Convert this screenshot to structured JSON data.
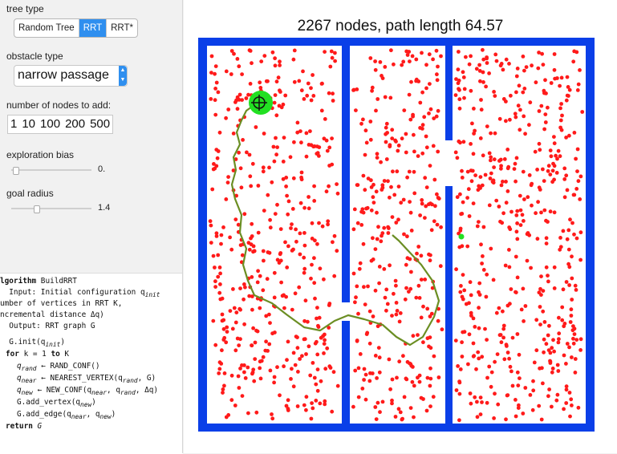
{
  "controls": {
    "tree_type_label": "tree type",
    "tree_types": [
      "Random Tree",
      "RRT",
      "RRT*"
    ],
    "tree_type_selected": "RRT",
    "obstacle_label": "obstacle type",
    "obstacle_value": "narrow passage",
    "nodes_label": "number of nodes to add:",
    "node_buttons": [
      "1",
      "10",
      "100",
      "200",
      "500"
    ],
    "bias_label": "exploration bias",
    "bias_value": "0.",
    "bias_level": 0.02,
    "goal_label": "goal radius",
    "goal_value": "1.4",
    "goal_level": 0.3
  },
  "algorithm": {
    "l1a": "lgorithm",
    "l1b": " BuildRRT",
    "l2": "  Input: Initial configuration q",
    "l2sub": "init",
    "l3": "umber of vertices in RRT K,",
    "l4": "ncremental distance Δq)",
    "l5": "  Output: RRT graph G",
    "l6a": "  G.init(q",
    "l6sub": "init",
    "l7a": "for",
    "l7b": " k = 1 ",
    "l7c": "to",
    "l7d": " K",
    "l8a": "q",
    "l8sub": "rand",
    "l8b": " ← RAND_CONF()",
    "l9a": "q",
    "l9sub": "near",
    "l9b": " ← NEAREST_VERTEX(q",
    "l9sub2": "rand",
    "l9c": ", G)",
    "l10a": "q",
    "l10sub": "new",
    "l10b": " ← NEW_CONF(q",
    "l10sub2": "near",
    "l10c": ", q",
    "l10sub3": "rand",
    "l10d": ", Δq)",
    "l11": "G.add_vertex(q",
    "l11sub": "new",
    "l12": "G.add_edge(q",
    "l12sub": "near",
    "l12b": ", q",
    "l12sub2": "new",
    "l13a": "return",
    "l13b": " G"
  },
  "plot": {
    "title": "2267 nodes, path length 64.57",
    "wall_color": "#0a3fe8",
    "node_color": "#ff1a1a",
    "path_color": "#6b8e23",
    "goal_color": "#22e022",
    "node_count_drawn": 1250
  }
}
